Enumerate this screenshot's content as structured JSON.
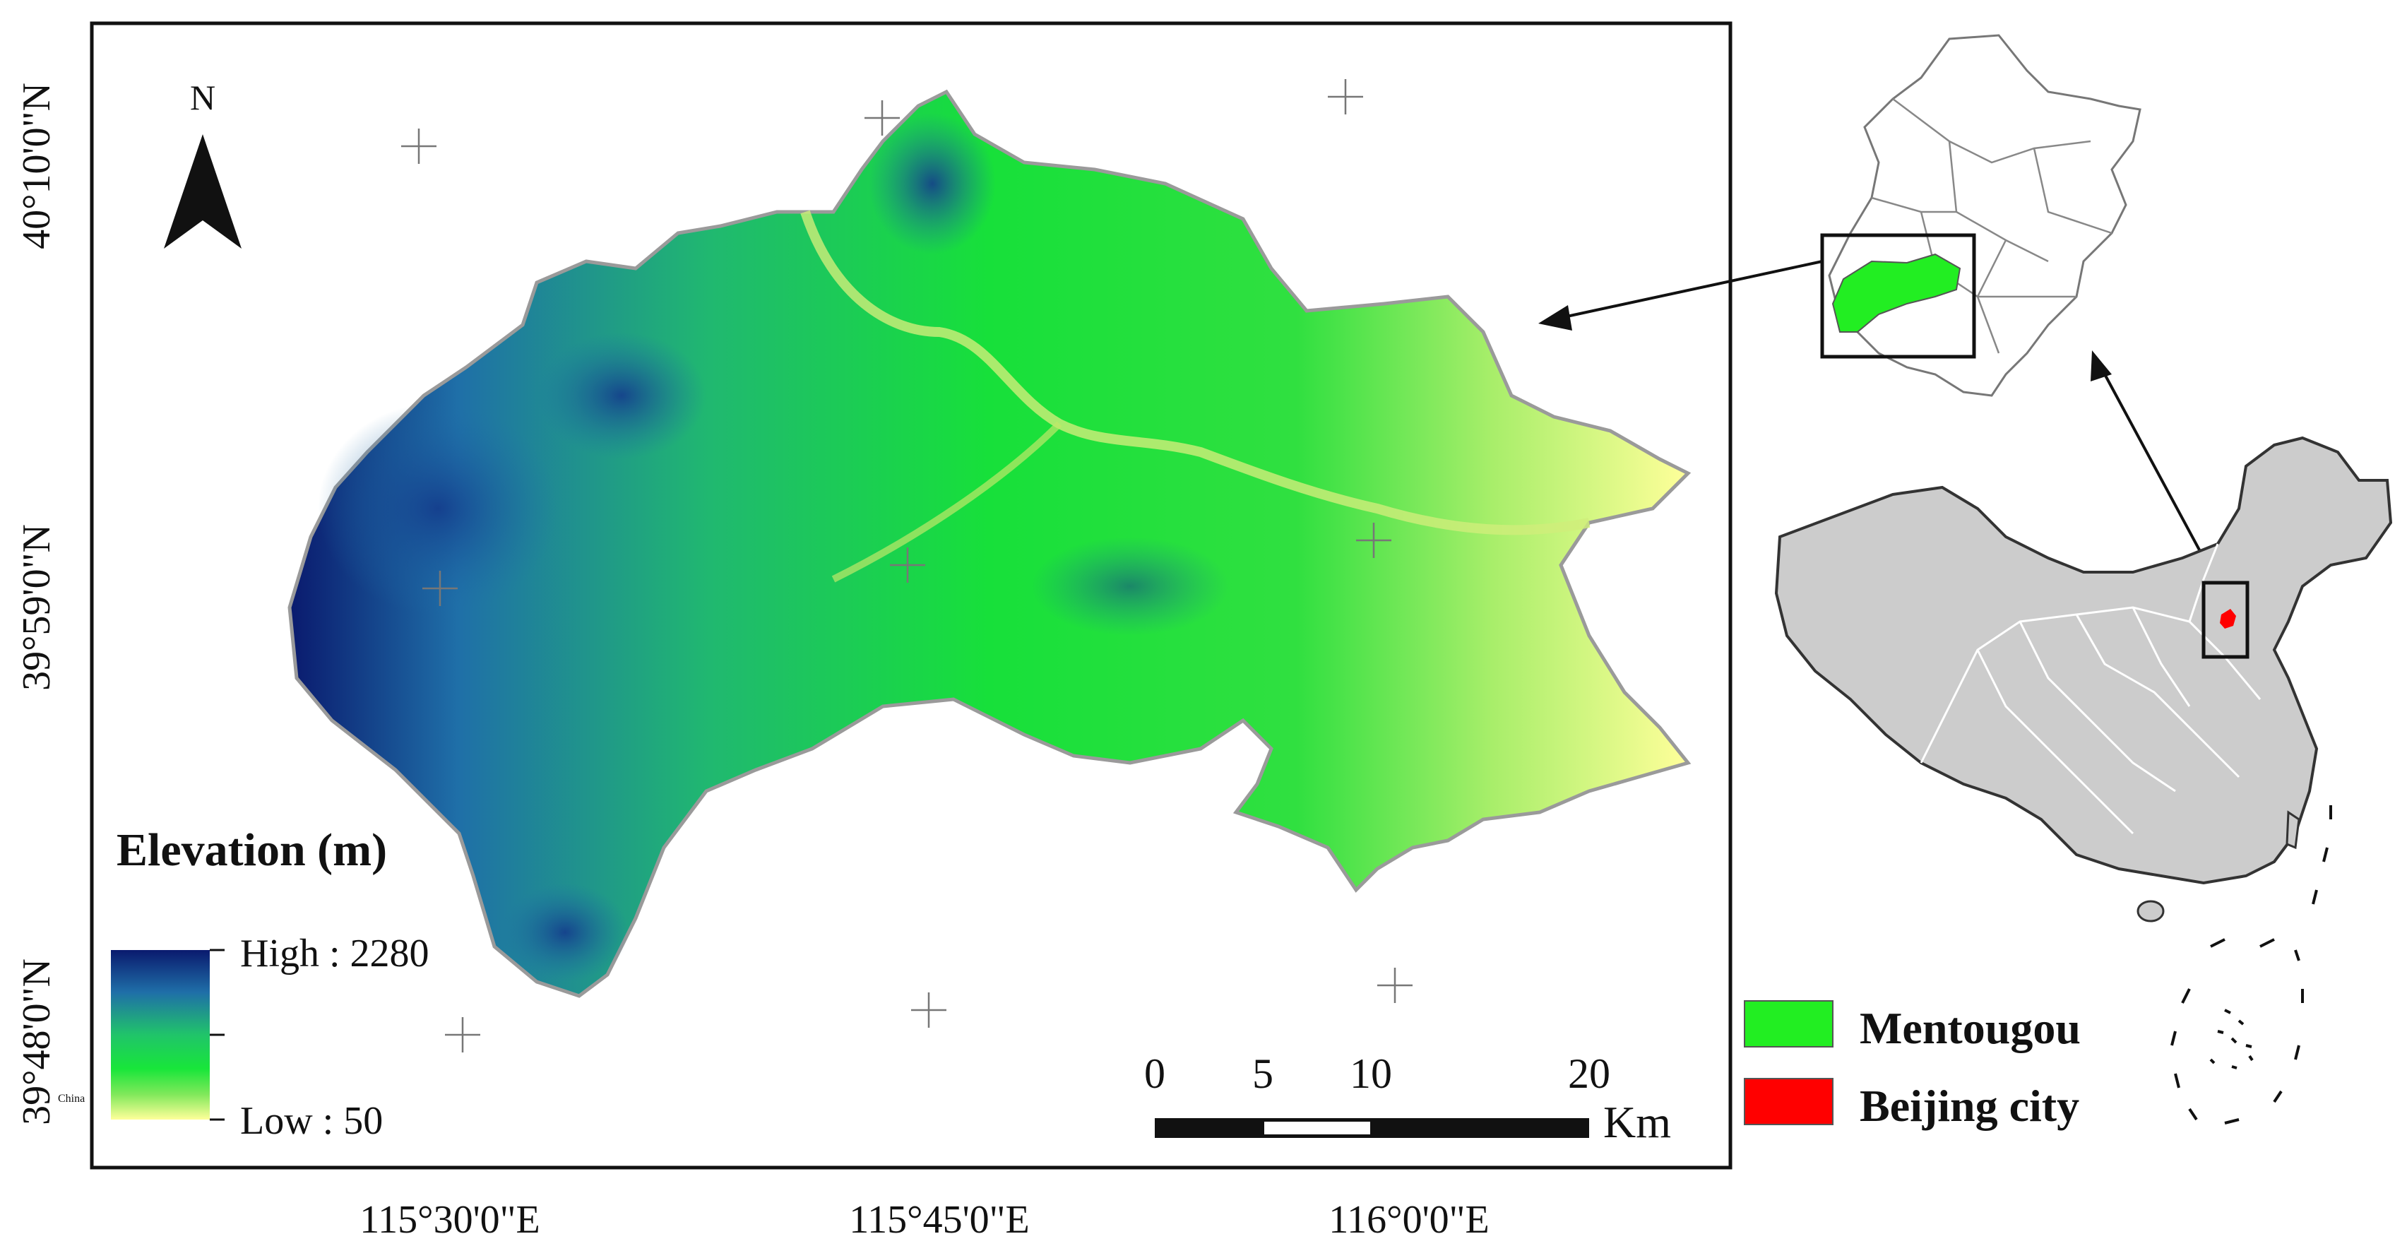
{
  "map": {
    "north_arrow": {
      "letter": "N"
    },
    "lat_labels": [
      "40°10'0\"N",
      "39°59'0\"N",
      "39°48'0\"N"
    ],
    "lon_labels": [
      "115°30'0\"E",
      "115°45'0\"E",
      "116°0'0\"E"
    ],
    "legend": {
      "title": "Elevation (m)",
      "high_label": "High : 2280",
      "low_label": "Low : 50",
      "small_text": "China",
      "ramp_colors": [
        "#0a1a6e",
        "#1f6fa8",
        "#20c46a",
        "#18e63a",
        "#7fe85a",
        "#ffff9a"
      ]
    },
    "scale_bar": {
      "ticks": [
        "0",
        "5",
        "10",
        "20"
      ],
      "unit": "Km"
    }
  },
  "inset": {
    "legend": [
      {
        "label": "Mentougou",
        "color": "#22ee22"
      },
      {
        "label": "Beijing city",
        "color": "#ff0000"
      }
    ],
    "china_fill": "#cccccc"
  }
}
